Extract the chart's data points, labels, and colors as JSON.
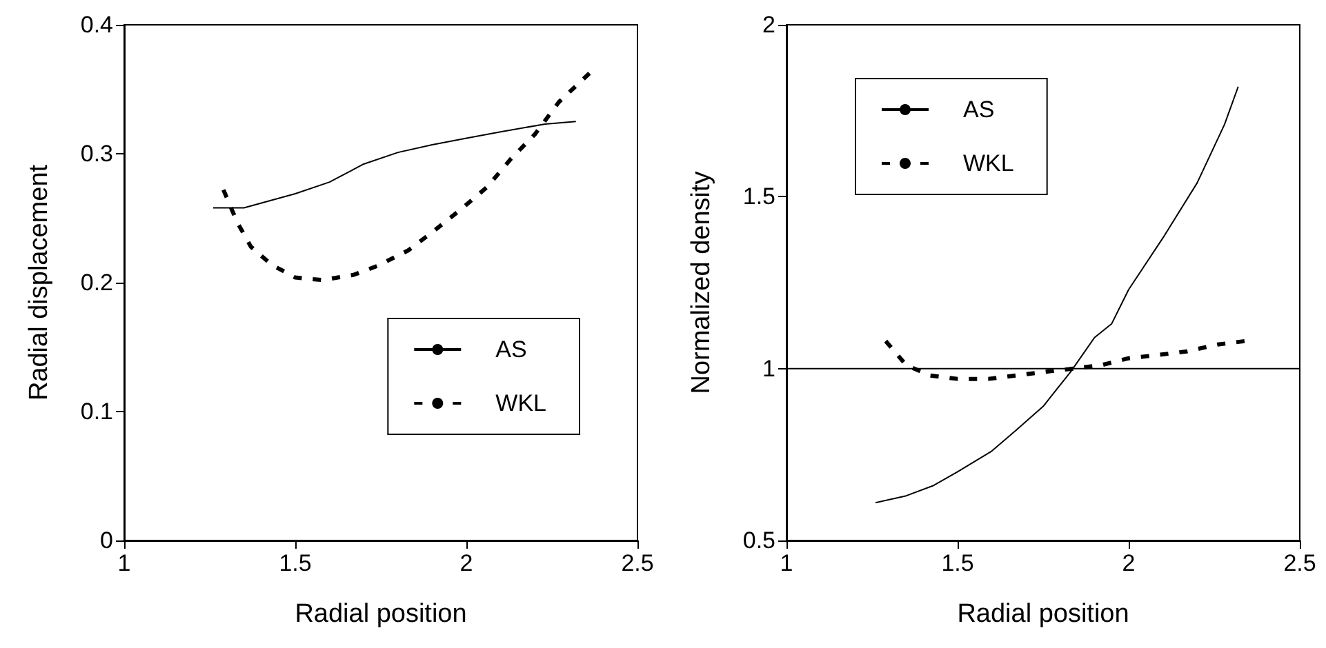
{
  "chart_data": [
    {
      "type": "line",
      "xlabel": "Radial position",
      "ylabel": "Radial displacement",
      "xlim": [
        1,
        2.5
      ],
      "ylim": [
        0,
        0.4
      ],
      "xticks": [
        1,
        1.5,
        2,
        2.5
      ],
      "yticks": [
        0,
        0.1,
        0.2,
        0.3,
        0.4
      ],
      "grid": false,
      "legend": "bottom right",
      "marker": "none",
      "series": [
        {
          "name": "AS",
          "color": "#000000",
          "line_style": "solid",
          "x": [
            1.26,
            1.35,
            1.5,
            1.6,
            1.7,
            1.8,
            1.9,
            2.0,
            2.1,
            2.23,
            2.32
          ],
          "values": [
            0.258,
            0.258,
            0.269,
            0.278,
            0.292,
            0.301,
            0.307,
            0.312,
            0.317,
            0.323,
            0.325
          ]
        },
        {
          "name": "WKL",
          "color": "#000000",
          "line_style": "dashed",
          "x": [
            1.29,
            1.33,
            1.37,
            1.43,
            1.5,
            1.58,
            1.67,
            1.74,
            1.83,
            1.9,
            1.98,
            2.06,
            2.13,
            2.2,
            2.27,
            2.37
          ],
          "values": [
            0.272,
            0.247,
            0.228,
            0.214,
            0.204,
            0.202,
            0.206,
            0.213,
            0.225,
            0.239,
            0.256,
            0.274,
            0.296,
            0.315,
            0.34,
            0.365
          ]
        }
      ]
    },
    {
      "type": "line",
      "xlabel": "Radial position",
      "ylabel": "Normalized density",
      "xlim": [
        1,
        2.5
      ],
      "ylim": [
        0.5,
        2
      ],
      "xticks": [
        1,
        1.5,
        2,
        2.5
      ],
      "yticks": [
        0.5,
        1,
        1.5,
        2
      ],
      "grid": false,
      "legend": "top left",
      "marker": "none",
      "ref_lines": [
        {
          "axis": "y",
          "value": 1,
          "color": "#000000"
        }
      ],
      "series": [
        {
          "name": "AS",
          "color": "#000000",
          "line_style": "solid",
          "x": [
            1.26,
            1.35,
            1.43,
            1.5,
            1.6,
            1.67,
            1.75,
            1.83,
            1.9,
            1.95,
            2.0,
            2.1,
            2.2,
            2.28,
            2.32
          ],
          "values": [
            0.61,
            0.63,
            0.66,
            0.7,
            0.76,
            0.82,
            0.89,
            0.99,
            1.09,
            1.13,
            1.23,
            1.38,
            1.54,
            1.71,
            1.82
          ]
        },
        {
          "name": "WKL",
          "color": "#000000",
          "line_style": "dashed",
          "x": [
            1.29,
            1.35,
            1.42,
            1.5,
            1.59,
            1.67,
            1.75,
            1.84,
            1.92,
            2.0,
            2.09,
            2.17,
            2.26,
            2.34
          ],
          "values": [
            1.08,
            1.01,
            0.98,
            0.97,
            0.97,
            0.98,
            0.99,
            1.0,
            1.01,
            1.03,
            1.04,
            1.05,
            1.07,
            1.08
          ]
        }
      ]
    }
  ]
}
